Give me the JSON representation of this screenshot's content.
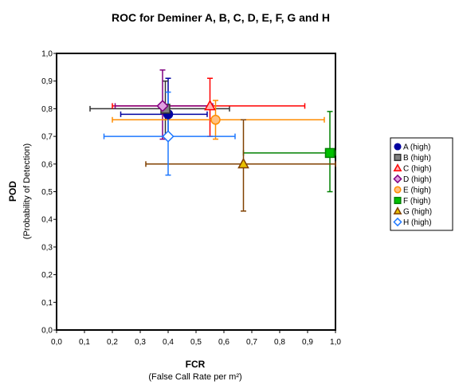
{
  "chart_data": {
    "type": "scatter",
    "title": "ROC for Deminer A, B, C, D, E, F, G and H",
    "xlabel": "FCR",
    "xlabel_sub": "(False Call Rate per m²)",
    "ylabel": "POD",
    "ylabel_sub": "(Probability of Detection)",
    "xlim": [
      0,
      1
    ],
    "ylim": [
      0,
      1
    ],
    "x_ticks": [
      "0,0",
      "0,1",
      "0,2",
      "0,3",
      "0,4",
      "0,5",
      "0,6",
      "0,7",
      "0,8",
      "0,9",
      "1,0"
    ],
    "y_ticks": [
      "0,0",
      "0,1",
      "0,2",
      "0,3",
      "0,4",
      "0,5",
      "0,6",
      "0,7",
      "0,8",
      "0,9",
      "1,0"
    ],
    "grid": "off",
    "legend_position": "right",
    "series": [
      {
        "name": "A (high)",
        "marker": "circle",
        "color": "#0000A0",
        "fill": "#0000A0",
        "x": 0.4,
        "y": 0.78,
        "x_err": [
          0.23,
          0.54
        ],
        "y_err": [
          0.69,
          0.91
        ]
      },
      {
        "name": "B (high)",
        "marker": "square",
        "color": "#333333",
        "fill": "#808080",
        "x": 0.39,
        "y": 0.8,
        "x_err": [
          0.12,
          0.62
        ],
        "y_err": [
          0.7,
          0.9
        ]
      },
      {
        "name": "C (high)",
        "marker": "triangle",
        "color": "#FF0000",
        "fill": "#FFB0B0",
        "x": 0.55,
        "y": 0.81,
        "x_err": [
          0.2,
          0.89
        ],
        "y_err": [
          0.7,
          0.91
        ]
      },
      {
        "name": "D (high)",
        "marker": "diamond",
        "color": "#800080",
        "fill": "#E0A0E0",
        "x": 0.38,
        "y": 0.81,
        "x_err": [
          0.21,
          0.56
        ],
        "y_err": [
          0.69,
          0.94
        ]
      },
      {
        "name": "E (high)",
        "marker": "circle",
        "color": "#FF8C00",
        "fill": "#FFC080",
        "x": 0.57,
        "y": 0.76,
        "x_err": [
          0.2,
          0.96
        ],
        "y_err": [
          0.69,
          0.83
        ]
      },
      {
        "name": "F (high)",
        "marker": "square",
        "color": "#008000",
        "fill": "#00C000",
        "x": 0.98,
        "y": 0.64,
        "x_err": [
          0.67,
          1.0
        ],
        "y_err": [
          0.5,
          0.79
        ]
      },
      {
        "name": "G (high)",
        "marker": "triangle",
        "color": "#804000",
        "fill": "#E8C000",
        "x": 0.67,
        "y": 0.6,
        "x_err": [
          0.32,
          1.0
        ],
        "y_err": [
          0.43,
          0.76
        ]
      },
      {
        "name": "H (high)",
        "marker": "diamond",
        "color": "#1E78FF",
        "fill": "#FFFFFF",
        "x": 0.4,
        "y": 0.7,
        "x_err": [
          0.17,
          0.64
        ],
        "y_err": [
          0.56,
          0.86
        ]
      }
    ]
  }
}
